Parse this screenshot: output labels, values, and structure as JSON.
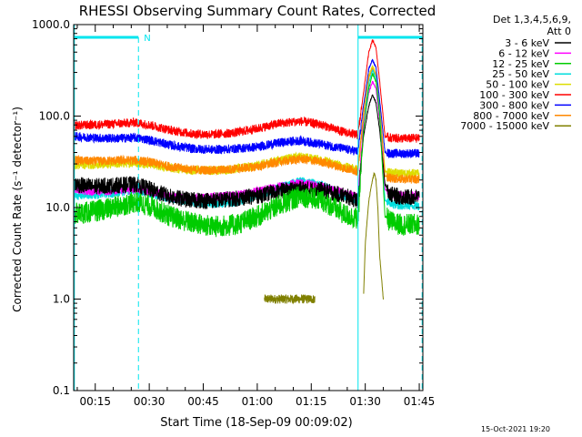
{
  "chart_data": {
    "type": "line",
    "title": "RHESSI Observing Summary Count Rates, Corrected",
    "xlabel": "Start Time (18-Sep-09 00:09:02)",
    "ylabel": "Corrected Count Rate (s⁻¹ detector⁻¹)",
    "y_scale": "log",
    "ylim": [
      0.1,
      1000
    ],
    "xlim_minutes": [
      9.0,
      106.0
    ],
    "y_ticks": [
      "0.1",
      "1.0",
      "10.0",
      "100.0",
      "1000.0"
    ],
    "x_ticks": [
      {
        "label": "00:15",
        "t": 15
      },
      {
        "label": "00:30",
        "t": 30
      },
      {
        "label": "00:45",
        "t": 45
      },
      {
        "label": "01:00",
        "t": 60
      },
      {
        "label": "01:15",
        "t": 75
      },
      {
        "label": "01:30",
        "t": 90
      },
      {
        "label": "01:45",
        "t": 105
      }
    ],
    "grid": false,
    "legend_position": "right",
    "legend_header": [
      "Det 1,3,4,5,6,9,",
      "Att 0"
    ],
    "series": [
      {
        "name": "3 - 6 keV",
        "color": "#000000",
        "x": [
          9,
          14,
          20,
          26,
          30,
          36,
          42,
          48,
          54,
          60,
          66,
          72,
          78,
          84,
          88,
          89.5,
          91,
          92,
          93,
          94,
          95.5,
          97,
          100,
          105
        ],
        "y": [
          18,
          17,
          17.5,
          18,
          16,
          13,
          12,
          12,
          12.5,
          13.5,
          15,
          16,
          15.5,
          13.5,
          12,
          60,
          130,
          170,
          140,
          70,
          18,
          14,
          13,
          13
        ]
      },
      {
        "name": "6 - 12 keV",
        "color": "#ff00ff",
        "x": [
          9,
          14,
          20,
          26,
          30,
          36,
          42,
          48,
          54,
          60,
          66,
          72,
          78,
          84,
          88,
          89.5,
          91,
          92,
          93,
          94,
          95.5,
          97,
          100,
          105
        ],
        "y": [
          16,
          15,
          15.5,
          16,
          15,
          13,
          12.5,
          13,
          13.5,
          15,
          17,
          18.5,
          17,
          14.5,
          13,
          80,
          180,
          240,
          200,
          90,
          16,
          14,
          13.5,
          13.5
        ]
      },
      {
        "name": "12 - 25 keV",
        "color": "#00cc00",
        "x": [
          9,
          14,
          20,
          26,
          30,
          36,
          42,
          48,
          54,
          60,
          66,
          72,
          78,
          84,
          88,
          89.5,
          91,
          92,
          93,
          94,
          95.5,
          97,
          100,
          105
        ],
        "y": [
          8.5,
          9,
          10,
          11.5,
          10.5,
          8,
          6.8,
          6.2,
          6.5,
          8,
          10.5,
          13.5,
          12,
          8.5,
          7.5,
          70,
          200,
          290,
          240,
          100,
          8,
          7,
          6.5,
          6.5
        ]
      },
      {
        "name": "25 - 50 keV",
        "color": "#00dddd",
        "x": [
          9,
          14,
          20,
          26,
          30,
          36,
          42,
          48,
          54,
          60,
          66,
          72,
          78,
          84,
          88,
          89.5,
          91,
          92,
          93,
          94,
          95.5,
          97,
          100,
          105
        ],
        "y": [
          13.5,
          13.8,
          14.5,
          15.5,
          14.5,
          12.5,
          11.5,
          11,
          11.5,
          13.5,
          16.5,
          19.5,
          17.5,
          13.5,
          12,
          80,
          230,
          320,
          260,
          110,
          12,
          11,
          10.5,
          10.5
        ]
      },
      {
        "name": "50 - 100 keV",
        "color": "#dddd00",
        "x": [
          9,
          14,
          20,
          26,
          30,
          36,
          42,
          48,
          54,
          60,
          66,
          72,
          78,
          84,
          88,
          89.5,
          91,
          92,
          93,
          94,
          95.5,
          97,
          100,
          105
        ],
        "y": [
          29,
          29.5,
          30,
          31,
          30,
          27,
          25.5,
          25.5,
          26.5,
          29,
          33,
          36,
          33,
          28,
          26,
          110,
          280,
          350,
          290,
          130,
          25,
          24,
          23.5,
          23.5
        ]
      },
      {
        "name": "100 - 300 keV",
        "color": "#ff0000",
        "x": [
          9,
          14,
          20,
          26,
          30,
          36,
          42,
          48,
          54,
          60,
          66,
          72,
          78,
          84,
          88,
          89.5,
          91,
          92,
          93,
          94,
          95.5,
          97,
          100,
          105
        ],
        "y": [
          79,
          80,
          82,
          85,
          80,
          70,
          64,
          63,
          66,
          73,
          83,
          88,
          80,
          67,
          62,
          180,
          500,
          680,
          560,
          240,
          60,
          58,
          57,
          57
        ]
      },
      {
        "name": "300 - 800 keV",
        "color": "#0000ff",
        "x": [
          9,
          14,
          20,
          26,
          30,
          36,
          42,
          48,
          54,
          60,
          66,
          72,
          78,
          84,
          88,
          89.5,
          91,
          92,
          93,
          94,
          95.5,
          97,
          100,
          105
        ],
        "y": [
          60,
          58,
          57,
          58,
          55,
          48,
          44,
          43,
          44,
          46,
          51,
          54,
          49,
          44,
          41,
          130,
          330,
          410,
          340,
          150,
          40,
          39,
          39,
          39
        ]
      },
      {
        "name": "800 - 7000 keV",
        "color": "#ff8800",
        "x": [
          9,
          14,
          20,
          26,
          30,
          36,
          42,
          48,
          54,
          60,
          66,
          72,
          78,
          84,
          88,
          89.5,
          91,
          92,
          93,
          94,
          95.5,
          97,
          100,
          105
        ],
        "y": [
          33,
          32,
          32.5,
          33,
          31.5,
          28,
          26,
          25.5,
          26.5,
          28,
          31.5,
          34,
          31.5,
          27,
          25,
          100,
          260,
          330,
          270,
          120,
          22,
          21,
          20.5,
          20.5
        ]
      },
      {
        "name": "7000 - 15000 keV",
        "color": "#808000",
        "x": [
          62,
          66,
          70,
          74,
          76,
          77,
          81,
          83,
          89.5,
          90,
          91,
          92,
          92.5,
          93,
          93.5,
          94,
          95
        ],
        "y": [
          1.0,
          1.0,
          1.0,
          1.0,
          1.0,
          null,
          null,
          null,
          1.0,
          4,
          12,
          20,
          24,
          20,
          10,
          3,
          1.0
        ]
      }
    ],
    "annotations": {
      "attenuator_bar_label": "N",
      "footer_date": "15-Oct-2021 19:20"
    }
  }
}
